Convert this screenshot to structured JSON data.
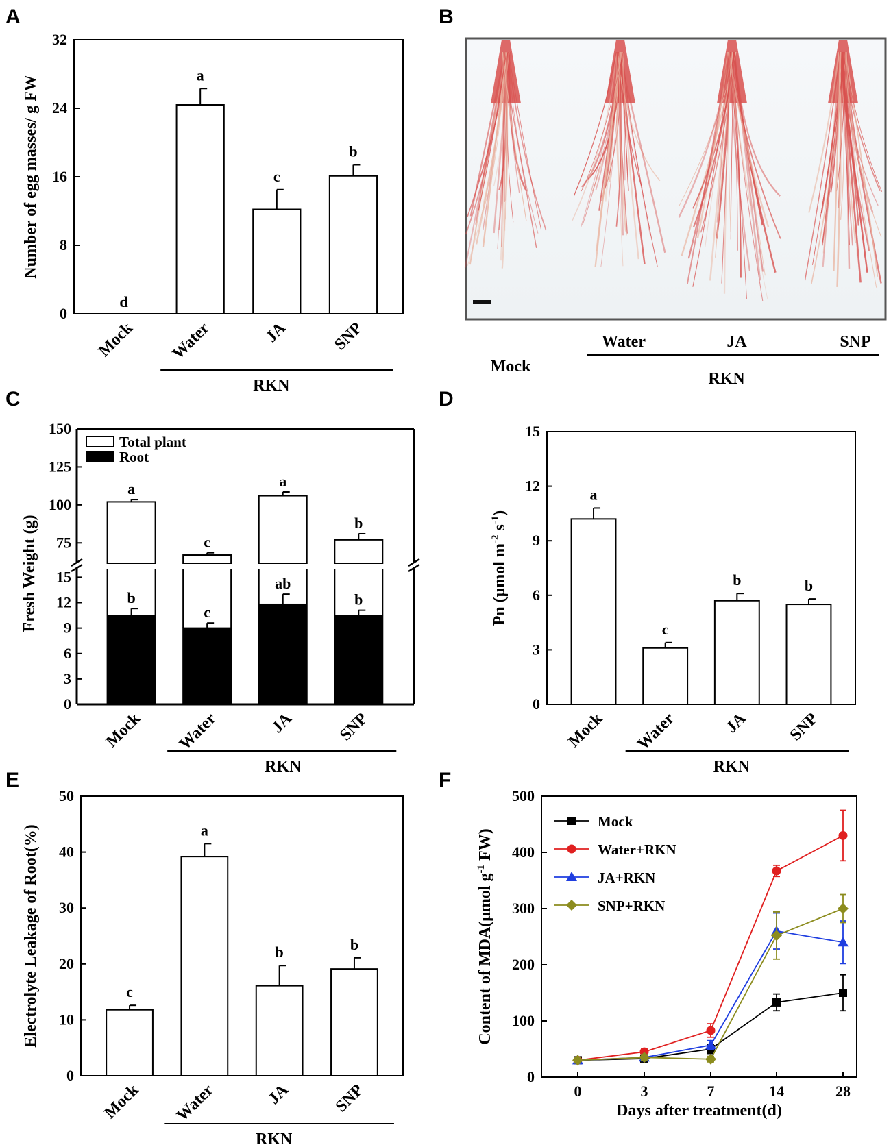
{
  "panels": {
    "A": {
      "label": "A"
    },
    "B": {
      "label": "B"
    },
    "C": {
      "label": "C"
    },
    "D": {
      "label": "D"
    },
    "E": {
      "label": "E"
    },
    "F": {
      "label": "F"
    }
  },
  "panelB": {
    "labels": [
      "Mock",
      "Water",
      "JA",
      "SNP"
    ],
    "group_label": "RKN",
    "colors": {
      "root": "#d8504e",
      "background": "#f3f6f8"
    }
  },
  "chart_data": [
    {
      "panel": "A",
      "type": "bar",
      "categories": [
        "Mock",
        "Water",
        "JA",
        "SNP"
      ],
      "values": [
        0,
        24.4,
        12.2,
        16.1
      ],
      "errors": [
        0,
        1.9,
        2.3,
        1.3
      ],
      "sig": [
        "d",
        "a",
        "c",
        "b"
      ],
      "ylabel": "Number  of  egg masses/  g  FW",
      "ylim": [
        0,
        32
      ],
      "yticks": [
        "0",
        "8",
        "16",
        "24",
        "32"
      ],
      "group_label": "RKN"
    },
    {
      "panel": "C",
      "type": "bar",
      "categories": [
        "Mock",
        "Water",
        "JA",
        "SNP"
      ],
      "series": [
        {
          "name": "Total plant",
          "values": [
            102,
            67,
            106,
            77
          ],
          "errors": [
            1.5,
            1.5,
            2.5,
            4
          ],
          "sig": [
            "a",
            "c",
            "a",
            "b"
          ]
        },
        {
          "name": "Root",
          "values": [
            10.5,
            9,
            11.8,
            10.5
          ],
          "errors": [
            0.8,
            0.6,
            1.2,
            0.6
          ],
          "sig": [
            "b",
            "c",
            "ab",
            "b"
          ]
        }
      ],
      "ylabel": "Fresh Weight (g)",
      "ylim": [
        0,
        150
      ],
      "axis_break": [
        16,
        62.5
      ],
      "yticks_low": [
        "0",
        "3",
        "6",
        "9",
        "12",
        "15"
      ],
      "yticks_high": [
        "75",
        "100",
        "125",
        "150"
      ],
      "group_label": "RKN"
    },
    {
      "panel": "D",
      "type": "bar",
      "categories": [
        "Mock",
        "Water",
        "JA",
        "SNP"
      ],
      "values": [
        10.2,
        3.1,
        5.7,
        5.5
      ],
      "errors": [
        0.6,
        0.3,
        0.4,
        0.3
      ],
      "sig": [
        "a",
        "c",
        "b",
        "b"
      ],
      "ylabel": "Pn (μmol m",
      "ylabel_sup1": "-2",
      "ylabel_mid": " s",
      "ylabel_sup2": "-1",
      "ylabel_end": ")",
      "ylim": [
        0,
        15
      ],
      "yticks": [
        "0",
        "3",
        "6",
        "9",
        "12",
        "15"
      ],
      "group_label": "RKN"
    },
    {
      "panel": "E",
      "type": "bar",
      "categories": [
        "Mock",
        "Water",
        "JA",
        "SNP"
      ],
      "values": [
        11.8,
        39.2,
        16.1,
        19.1
      ],
      "errors": [
        0.8,
        2.3,
        3.6,
        2
      ],
      "sig": [
        "c",
        "a",
        "b",
        "b"
      ],
      "ylabel": "Electrolyte Leakage of Root(%)",
      "ylim": [
        0,
        50
      ],
      "yticks": [
        "0",
        "10",
        "20",
        "30",
        "40",
        "50"
      ],
      "group_label": "RKN"
    },
    {
      "panel": "F",
      "type": "line",
      "x": [
        "0",
        "3",
        "7",
        "14",
        "28"
      ],
      "series": [
        {
          "name": "Mock",
          "color": "#000000",
          "marker": "square",
          "values": [
            30,
            33,
            50,
            133,
            150
          ],
          "errors": [
            5,
            4,
            8,
            15,
            32
          ]
        },
        {
          "name": "Water+RKN",
          "color": "#e02020",
          "marker": "circle",
          "values": [
            30,
            45,
            83,
            367,
            430
          ],
          "errors": [
            5,
            5,
            12,
            10,
            45
          ]
        },
        {
          "name": "JA+RKN",
          "color": "#1f3ee0",
          "marker": "triangle",
          "values": [
            30,
            35,
            57,
            260,
            240
          ],
          "errors": [
            5,
            5,
            8,
            32,
            38
          ]
        },
        {
          "name": "SNP+RKN",
          "color": "#8c8c1e",
          "marker": "diamond",
          "values": [
            30,
            35,
            32,
            252,
            300
          ],
          "errors": [
            5,
            5,
            5,
            42,
            25
          ]
        }
      ],
      "xlabel": "Days after treatment(d)",
      "ylabel": "Content of MDA(μmol g",
      "ylabel_sup": "-1",
      "ylabel_end": " FW)",
      "ylim": [
        0,
        500
      ],
      "yticks": [
        "0",
        "100",
        "200",
        "300",
        "400",
        "500"
      ]
    }
  ]
}
